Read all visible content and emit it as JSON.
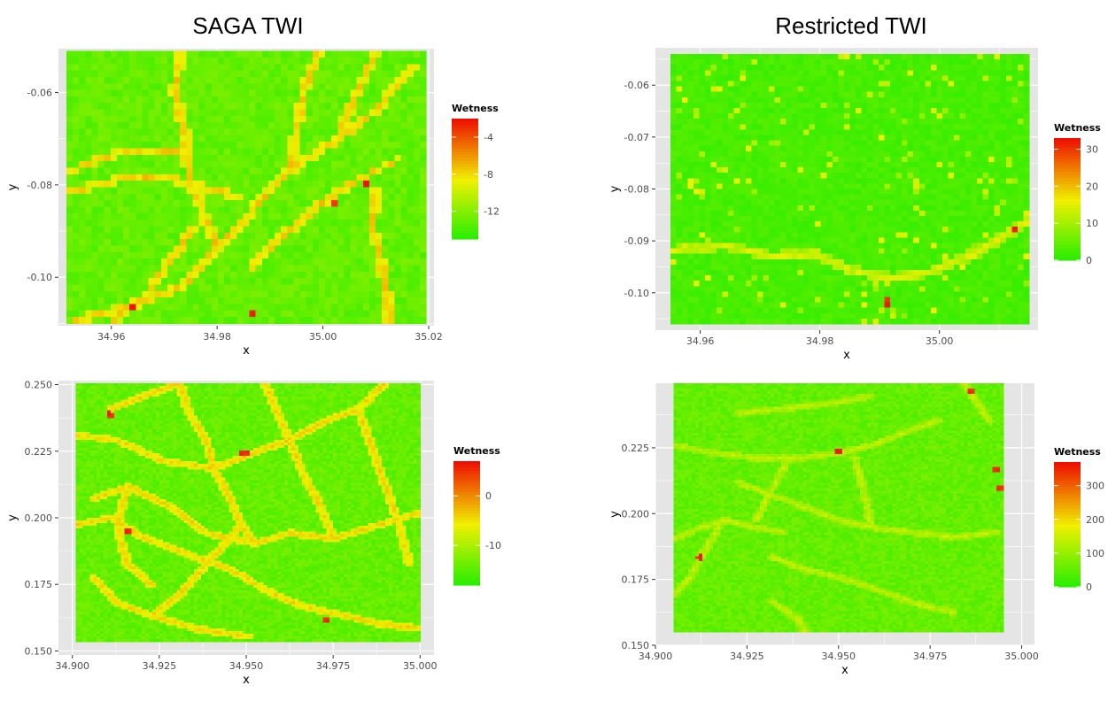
{
  "titles": {
    "left": "SAGA TWI",
    "right": "Restricted TWI"
  },
  "colors": {
    "panel_bg": "#e5e5e5",
    "grid": "#ffffff",
    "low": "#22ee00",
    "mid": "#f0f000",
    "high": "#ee1100",
    "tick_text": "#4d4d4d"
  },
  "chart_data": [
    {
      "type": "heatmap",
      "title": "SAGA TWI",
      "xlabel": "x",
      "ylabel": "y",
      "xlim": [
        34.95,
        35.021
      ],
      "ylim": [
        -0.1105,
        -0.0505
      ],
      "x_ticks": [
        "34.96",
        "34.98",
        "35.00",
        "35.02"
      ],
      "x_tick_values": [
        34.96,
        34.98,
        35.0,
        35.02
      ],
      "y_ticks": [
        "-0.06",
        "-0.08",
        "-0.10"
      ],
      "y_tick_values": [
        -0.06,
        -0.08,
        -0.1
      ],
      "data_extent": {
        "x": [
          34.9515,
          35.0195
        ],
        "y": [
          -0.11,
          -0.051
        ]
      },
      "legend": {
        "title": "Wetness",
        "labels": [
          "-4",
          "-8",
          "-12"
        ],
        "values": [
          -4,
          -8,
          -12
        ],
        "range": [
          -15,
          -2
        ],
        "position": "right"
      },
      "grid": true
    },
    {
      "type": "heatmap",
      "title": "Restricted TWI",
      "xlabel": "x",
      "ylabel": "y",
      "xlim": [
        34.9525,
        35.0165
      ],
      "ylim": [
        -0.1072,
        -0.0528
      ],
      "x_ticks": [
        "34.96",
        "34.98",
        "35.00"
      ],
      "x_tick_values": [
        34.96,
        34.98,
        35.0
      ],
      "y_ticks": [
        "-0.06",
        "-0.07",
        "-0.08",
        "-0.09",
        "-0.10"
      ],
      "y_tick_values": [
        -0.06,
        -0.07,
        -0.08,
        -0.09,
        -0.1
      ],
      "data_extent": {
        "x": [
          34.955,
          35.015
        ],
        "y": [
          -0.106,
          -0.054
        ]
      },
      "legend": {
        "title": "Wetness",
        "labels": [
          "30",
          "20",
          "10",
          "0"
        ],
        "values": [
          30,
          20,
          10,
          0
        ],
        "range": [
          0,
          33
        ],
        "position": "right"
      },
      "grid": true
    },
    {
      "type": "heatmap",
      "xlabel": "x",
      "ylabel": "y",
      "xlim": [
        34.896,
        35.004
      ],
      "ylim": [
        0.1485,
        0.2515
      ],
      "x_ticks": [
        "34.900",
        "34.925",
        "34.950",
        "34.975",
        "35.000"
      ],
      "x_tick_values": [
        34.9,
        34.925,
        34.95,
        34.975,
        35.0
      ],
      "y_ticks": [
        "0.250",
        "0.225",
        "0.200",
        "0.175",
        "0.150"
      ],
      "y_tick_values": [
        0.25,
        0.225,
        0.2,
        0.175,
        0.15
      ],
      "data_extent": {
        "x": [
          34.901,
          35.0
        ],
        "y": [
          0.1535,
          0.2505
        ]
      },
      "legend": {
        "title": "Wetness",
        "labels": [
          "0",
          "-10"
        ],
        "values": [
          0,
          -10
        ],
        "range": [
          -18,
          7
        ],
        "position": "right"
      },
      "grid": true
    },
    {
      "type": "heatmap",
      "xlabel": "x",
      "ylabel": "y",
      "xlim": [
        34.9,
        35.0035
      ],
      "ylim": [
        0.15,
        0.2495
      ],
      "x_ticks": [
        "34.900",
        "34.925",
        "34.950",
        "34.975",
        "35.000"
      ],
      "x_tick_values": [
        34.9,
        34.925,
        34.95,
        34.975,
        35.0
      ],
      "y_ticks": [
        "0.225",
        "0.200",
        "0.175",
        "0.150"
      ],
      "y_tick_values": [
        0.225,
        0.2,
        0.175,
        0.15
      ],
      "data_extent": {
        "x": [
          34.905,
          34.995
        ],
        "y": [
          0.155,
          0.2495
        ]
      },
      "legend": {
        "title": "Wetness",
        "labels": [
          "300",
          "200",
          "100",
          "0"
        ],
        "values": [
          300,
          200,
          100,
          0
        ],
        "range": [
          0,
          370
        ],
        "position": "right"
      },
      "grid": true
    }
  ]
}
